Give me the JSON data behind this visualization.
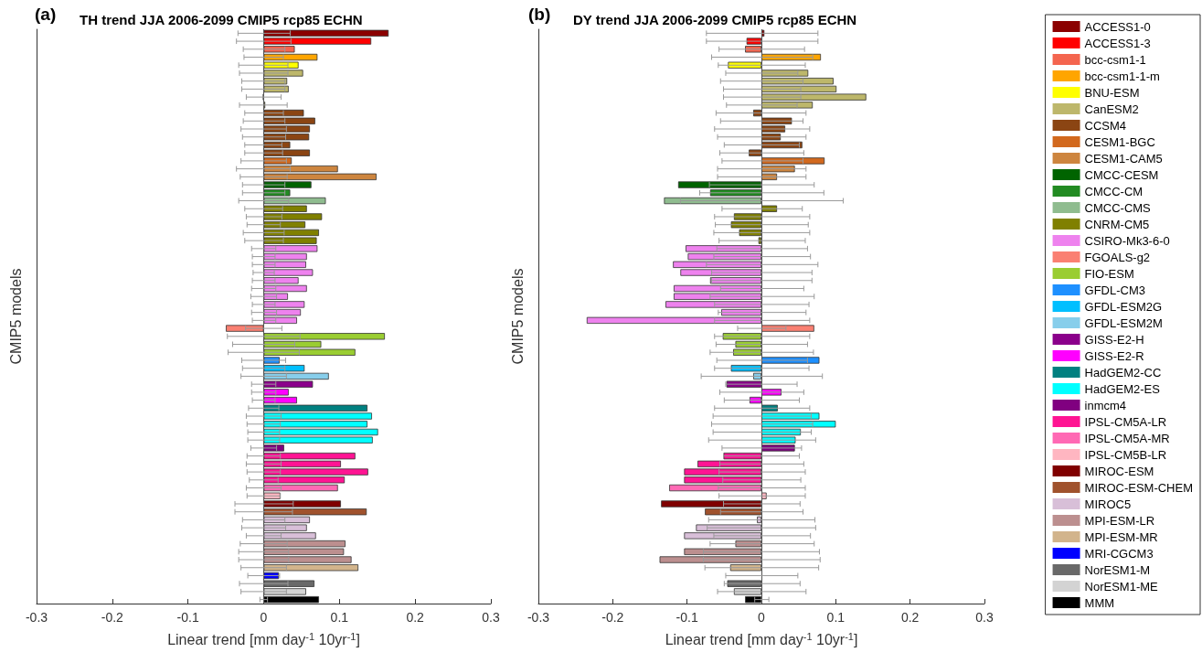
{
  "chart_data": [
    {
      "type": "bar",
      "orientation": "horizontal",
      "title": "TH trend JJA 2006-2099 CMIP5 rcp85 ECHN",
      "annotations": [
        "(a)"
      ],
      "xlabel": "Linear trend [mm day$^{-1}$ 10yr$^{-1}$]",
      "ylabel": "CMIP5 models",
      "tick_labels": "x",
      "categories": [
        null,
        null,
        null,
        null,
        null,
        null,
        null,
        null,
        null,
        null,
        null,
        null,
        null,
        null,
        null,
        null,
        null,
        null,
        null,
        null,
        null,
        null,
        null,
        null,
        null,
        null,
        null,
        null,
        null,
        null,
        null,
        null,
        null,
        null,
        null,
        null,
        null,
        null,
        null,
        null,
        null,
        null,
        null,
        null,
        null,
        null,
        null,
        null,
        null,
        null,
        null,
        null,
        null,
        null,
        null,
        null,
        null,
        null,
        null,
        null,
        null,
        null,
        null,
        null,
        null,
        null,
        null,
        null,
        null,
        null,
        null,
        null
      ],
      "xlim": [
        -0.3,
        0.3
      ],
      "xticks": [
        -0.3,
        -0.2,
        -0.1,
        0,
        0.1,
        0.2,
        0.3
      ],
      "grid": false,
      "ref_lines": [
        {
          "axis": "x",
          "value": 0
        }
      ],
      "values": [
        0.165,
        0.142,
        0.041,
        0.071,
        0.046,
        0.052,
        0.031,
        0.033,
        -0.001,
        0.002,
        0.053,
        0.068,
        0.061,
        0.06,
        0.035,
        0.061,
        0.037,
        0.098,
        0.149,
        0.063,
        0.035,
        0.082,
        0.057,
        0.077,
        0.055,
        0.073,
        0.07,
        0.071,
        0.057,
        0.056,
        0.065,
        0.046,
        0.057,
        0.032,
        0.054,
        0.049,
        0.044,
        -0.05,
        0.16,
        0.076,
        0.121,
        0.021,
        0.054,
        0.086,
        0.065,
        0.033,
        0.044,
        0.137,
        0.143,
        0.137,
        0.151,
        0.144,
        0.027,
        0.121,
        0.102,
        0.138,
        0.107,
        0.098,
        0.022,
        0.102,
        0.136,
        0.061,
        0.057,
        0.069,
        0.108,
        0.106,
        0.116,
        0.125,
        0.02,
        0.067,
        0.056,
        0.073
      ],
      "errors": [
        [
          -0.034,
          0.035
        ],
        [
          -0.036,
          0.036
        ],
        [
          -0.027,
          0.028
        ],
        [
          -0.026,
          0.026
        ],
        [
          -0.033,
          0.032
        ],
        [
          -0.032,
          0.032
        ],
        [
          -0.029,
          0.028
        ],
        [
          -0.029,
          0.028
        ],
        [
          -0.023,
          0.023
        ],
        [
          -0.032,
          0.031
        ],
        [
          -0.025,
          0.026
        ],
        [
          -0.027,
          0.028
        ],
        [
          -0.03,
          0.03
        ],
        [
          -0.028,
          0.029
        ],
        [
          -0.025,
          0.024
        ],
        [
          -0.025,
          0.025
        ],
        [
          -0.03,
          0.03
        ],
        [
          -0.036,
          0.035
        ],
        [
          -0.031,
          0.031
        ],
        [
          -0.028,
          0.028
        ],
        [
          -0.028,
          0.028
        ],
        [
          -0.033,
          0.033
        ],
        [
          -0.025,
          0.025
        ],
        [
          -0.023,
          0.024
        ],
        [
          -0.022,
          0.022
        ],
        [
          -0.027,
          0.027
        ],
        [
          -0.025,
          0.026
        ],
        [
          -0.016,
          0.016
        ],
        [
          -0.015,
          0.015
        ],
        [
          -0.015,
          0.015
        ],
        [
          -0.014,
          0.014
        ],
        [
          -0.015,
          0.015
        ],
        [
          -0.016,
          0.016
        ],
        [
          -0.017,
          0.017
        ],
        [
          -0.015,
          0.015
        ],
        [
          -0.016,
          0.017
        ],
        [
          -0.015,
          0.016
        ],
        [
          -0.024,
          0.024
        ],
        [
          -0.048,
          0.048
        ],
        [
          -0.041,
          0.041
        ],
        [
          -0.047,
          0.047
        ],
        [
          -0.029,
          0.029
        ],
        [
          -0.028,
          0.028
        ],
        [
          -0.03,
          0.03
        ],
        [
          -0.016,
          0.016
        ],
        [
          -0.016,
          0.016
        ],
        [
          -0.015,
          0.015
        ],
        [
          -0.02,
          0.02
        ],
        [
          -0.023,
          0.023
        ],
        [
          -0.022,
          0.022
        ],
        [
          -0.021,
          0.021
        ],
        [
          -0.021,
          0.021
        ],
        [
          -0.017,
          0.017
        ],
        [
          -0.022,
          0.022
        ],
        [
          -0.023,
          0.023
        ],
        [
          -0.022,
          0.022
        ],
        [
          -0.019,
          0.019
        ],
        [
          -0.023,
          0.023
        ],
        [
          -0.022,
          0.022
        ],
        [
          -0.038,
          0.039
        ],
        [
          -0.038,
          0.038
        ],
        [
          -0.028,
          0.028
        ],
        [
          -0.029,
          0.029
        ],
        [
          -0.023,
          0.023
        ],
        [
          -0.031,
          0.031
        ],
        [
          -0.033,
          0.033
        ],
        [
          -0.033,
          0.033
        ],
        [
          -0.03,
          0.03
        ],
        [
          -0.021,
          0.021
        ],
        [
          -0.032,
          0.032
        ],
        [
          -0.03,
          0.03
        ],
        [
          -0.005,
          0.005
        ]
      ],
      "colors": [
        "#8b0000",
        "#ff0000",
        "#f4654f",
        "#ffa500",
        "#ffff00",
        "#bdb76b",
        "#bdb76b",
        "#bdb76b",
        "#bdb76b",
        "#bdb76b",
        "#8b4513",
        "#8b4513",
        "#8b4513",
        "#8b4513",
        "#8b4513",
        "#8b4513",
        "#d2691e",
        "#cd853f",
        "#cd853f",
        "#006400",
        "#228b22",
        "#8fbc8f",
        "#808000",
        "#808000",
        "#808000",
        "#808000",
        "#808000",
        "#ee82ee",
        "#ee82ee",
        "#ee82ee",
        "#ee82ee",
        "#ee82ee",
        "#ee82ee",
        "#ee82ee",
        "#ee82ee",
        "#ee82ee",
        "#ee82ee",
        "#fa8072",
        "#9acd32",
        "#9acd32",
        "#9acd32",
        "#1e90ff",
        "#00bfff",
        "#87ceeb",
        "#8b008b",
        "#ff00ff",
        "#ff00ff",
        "#008080",
        "#00ffff",
        "#00ffff",
        "#00ffff",
        "#00ffff",
        "#800080",
        "#ff1493",
        "#ff1493",
        "#ff1493",
        "#ff1493",
        "#ff69b4",
        "#ffb6c1",
        "#800000",
        "#a0522d",
        "#d8bfd8",
        "#d8bfd8",
        "#d8bfd8",
        "#bc8f8f",
        "#bc8f8f",
        "#bc8f8f",
        "#d2b48c",
        "#0000ff",
        "#696969",
        "#d3d3d3",
        "#000000"
      ]
    },
    {
      "type": "bar",
      "orientation": "horizontal",
      "title": "DY trend JJA 2006-2099 CMIP5 rcp85 ECHN",
      "annotations": [
        "(b)"
      ],
      "xlabel": "Linear trend [mm day$^{-1}$ 10yr$^{-1}$]",
      "ylabel": "CMIP5 models",
      "tick_labels": "x",
      "categories": [
        null,
        null,
        null,
        null,
        null,
        null,
        null,
        null,
        null,
        null,
        null,
        null,
        null,
        null,
        null,
        null,
        null,
        null,
        null,
        null,
        null,
        null,
        null,
        null,
        null,
        null,
        null,
        null,
        null,
        null,
        null,
        null,
        null,
        null,
        null,
        null,
        null,
        null,
        null,
        null,
        null,
        null,
        null,
        null,
        null,
        null,
        null,
        null,
        null,
        null,
        null,
        null,
        null,
        null,
        null,
        null,
        null,
        null,
        null,
        null,
        null,
        null,
        null,
        null,
        null,
        null,
        null,
        null,
        null,
        null,
        null,
        null
      ],
      "xlim": [
        -0.3,
        0.3
      ],
      "xticks": [
        -0.3,
        -0.2,
        -0.1,
        0,
        0.1,
        0.2,
        0.3
      ],
      "grid": false,
      "ref_lines": [
        {
          "axis": "x",
          "value": 0
        }
      ],
      "values": [
        0.004,
        -0.02,
        -0.022,
        0.08,
        -0.045,
        0.063,
        0.097,
        0.101,
        0.141,
        0.069,
        -0.011,
        0.041,
        0.032,
        0.026,
        0.055,
        -0.017,
        0.085,
        0.045,
        0.021,
        -0.112,
        -0.069,
        -0.131,
        0.021,
        -0.037,
        -0.041,
        -0.03,
        -0.004,
        -0.102,
        -0.099,
        -0.119,
        -0.109,
        -0.069,
        -0.118,
        -0.118,
        -0.129,
        -0.054,
        -0.235,
        0.071,
        -0.052,
        -0.035,
        -0.038,
        0.078,
        -0.041,
        -0.011,
        -0.047,
        0.027,
        -0.016,
        0.022,
        0.078,
        0.1,
        0.053,
        0.046,
        0.045,
        -0.051,
        -0.086,
        -0.104,
        -0.104,
        -0.124,
        0.007,
        -0.135,
        -0.076,
        -0.006,
        -0.088,
        -0.104,
        -0.035,
        -0.104,
        -0.137,
        -0.042,
        0,
        -0.046,
        -0.037,
        -0.022
      ],
      "errors": [
        [
          -0.074,
          0.076
        ],
        [
          -0.074,
          0.076
        ],
        [
          -0.057,
          0.058
        ],
        [
          -0.067,
          0.069
        ],
        [
          -0.058,
          0.059
        ],
        [
          -0.048,
          0.049
        ],
        [
          -0.055,
          0.056
        ],
        [
          -0.051,
          0.053
        ],
        [
          -0.051,
          0.053
        ],
        [
          -0.047,
          0.048
        ],
        [
          -0.061,
          0.06
        ],
        [
          -0.055,
          0.056
        ],
        [
          -0.063,
          0.065
        ],
        [
          -0.059,
          0.06
        ],
        [
          -0.05,
          0.051
        ],
        [
          -0.056,
          0.057
        ],
        [
          -0.053,
          0.056
        ],
        [
          -0.059,
          0.06
        ],
        [
          -0.059,
          0.06
        ],
        [
          -0.07,
          0.071
        ],
        [
          -0.083,
          0.084
        ],
        [
          -0.109,
          0.11
        ],
        [
          -0.053,
          0.055
        ],
        [
          -0.063,
          0.065
        ],
        [
          -0.062,
          0.063
        ],
        [
          -0.064,
          0.065
        ],
        [
          -0.057,
          0.059
        ],
        [
          -0.06,
          0.062
        ],
        [
          -0.064,
          0.066
        ],
        [
          -0.074,
          0.076
        ],
        [
          -0.067,
          0.068
        ],
        [
          -0.067,
          0.068
        ],
        [
          -0.055,
          0.057
        ],
        [
          -0.069,
          0.071
        ],
        [
          -0.063,
          0.064
        ],
        [
          -0.058,
          0.06
        ],
        [
          -0.063,
          0.065
        ],
        [
          -0.032,
          0.033
        ],
        [
          -0.063,
          0.065
        ],
        [
          -0.061,
          0.062
        ],
        [
          -0.069,
          0.07
        ],
        [
          -0.06,
          0.062
        ],
        [
          -0.063,
          0.064
        ],
        [
          -0.081,
          0.082
        ],
        [
          -0.048,
          0.048
        ],
        [
          -0.056,
          0.057
        ],
        [
          -0.05,
          0.051
        ],
        [
          -0.063,
          0.065
        ],
        [
          -0.065,
          0.067
        ],
        [
          -0.067,
          0.069
        ],
        [
          -0.065,
          0.067
        ],
        [
          -0.071,
          0.073
        ],
        [
          -0.053,
          0.054
        ],
        [
          -0.051,
          0.051
        ],
        [
          -0.056,
          0.057
        ],
        [
          -0.057,
          0.059
        ],
        [
          -0.052,
          0.053
        ],
        [
          -0.058,
          0.059
        ],
        [
          -0.057,
          0.059
        ],
        [
          -0.051,
          0.052
        ],
        [
          -0.055,
          0.056
        ],
        [
          -0.071,
          0.072
        ],
        [
          -0.073,
          0.073
        ],
        [
          -0.064,
          0.066
        ],
        [
          -0.069,
          0.071
        ],
        [
          -0.078,
          0.078
        ],
        [
          -0.078,
          0.079
        ],
        [
          -0.076,
          0.077
        ],
        [
          -0.048,
          0.049
        ],
        [
          -0.05,
          0.052
        ],
        [
          -0.059,
          0.06
        ],
        [
          -0.009,
          0.01
        ]
      ],
      "colors": [
        "#8b0000",
        "#ff0000",
        "#f4654f",
        "#ffa500",
        "#ffff00",
        "#bdb76b",
        "#bdb76b",
        "#bdb76b",
        "#bdb76b",
        "#bdb76b",
        "#8b4513",
        "#8b4513",
        "#8b4513",
        "#8b4513",
        "#8b4513",
        "#8b4513",
        "#d2691e",
        "#cd853f",
        "#cd853f",
        "#006400",
        "#228b22",
        "#8fbc8f",
        "#808000",
        "#808000",
        "#808000",
        "#808000",
        "#808000",
        "#ee82ee",
        "#ee82ee",
        "#ee82ee",
        "#ee82ee",
        "#ee82ee",
        "#ee82ee",
        "#ee82ee",
        "#ee82ee",
        "#ee82ee",
        "#ee82ee",
        "#fa8072",
        "#9acd32",
        "#9acd32",
        "#9acd32",
        "#1e90ff",
        "#00bfff",
        "#87ceeb",
        "#8b008b",
        "#ff00ff",
        "#ff00ff",
        "#008080",
        "#00ffff",
        "#00ffff",
        "#00ffff",
        "#00ffff",
        "#800080",
        "#ff1493",
        "#ff1493",
        "#ff1493",
        "#ff1493",
        "#ff69b4",
        "#ffb6c1",
        "#800000",
        "#a0522d",
        "#d8bfd8",
        "#d8bfd8",
        "#d8bfd8",
        "#bc8f8f",
        "#bc8f8f",
        "#bc8f8f",
        "#d2b48c",
        "#0000ff",
        "#696969",
        "#d3d3d3",
        "#000000"
      ]
    },
    {
      "type": "other",
      "legend": "right",
      "series": [
        {
          "name": "ACCESS1-0",
          "color": "#8b0000"
        },
        {
          "name": "ACCESS1-3",
          "color": "#ff0000"
        },
        {
          "name": "bcc-csm1-1",
          "color": "#f4654f"
        },
        {
          "name": "bcc-csm1-1-m",
          "color": "#ffa500"
        },
        {
          "name": "BNU-ESM",
          "color": "#ffff00"
        },
        {
          "name": "CanESM2",
          "color": "#bdb76b"
        },
        {
          "name": "CCSM4",
          "color": "#8b4513"
        },
        {
          "name": "CESM1-BGC",
          "color": "#d2691e"
        },
        {
          "name": "CESM1-CAM5",
          "color": "#cd853f"
        },
        {
          "name": "CMCC-CESM",
          "color": "#006400"
        },
        {
          "name": "CMCC-CM",
          "color": "#228b22"
        },
        {
          "name": "CMCC-CMS",
          "color": "#8fbc8f"
        },
        {
          "name": "CNRM-CM5",
          "color": "#808000"
        },
        {
          "name": "CSIRO-Mk3-6-0",
          "color": "#ee82ee"
        },
        {
          "name": "FGOALS-g2",
          "color": "#fa8072"
        },
        {
          "name": "FIO-ESM",
          "color": "#9acd32"
        },
        {
          "name": "GFDL-CM3",
          "color": "#1e90ff"
        },
        {
          "name": "GFDL-ESM2G",
          "color": "#00bfff"
        },
        {
          "name": "GFDL-ESM2M",
          "color": "#87ceeb"
        },
        {
          "name": "GISS-E2-H",
          "color": "#8b008b"
        },
        {
          "name": "GISS-E2-R",
          "color": "#ff00ff"
        },
        {
          "name": "HadGEM2-CC",
          "color": "#008080"
        },
        {
          "name": "HadGEM2-ES",
          "color": "#00ffff"
        },
        {
          "name": "inmcm4",
          "color": "#800080"
        },
        {
          "name": "IPSL-CM5A-LR",
          "color": "#ff1493"
        },
        {
          "name": "IPSL-CM5A-MR",
          "color": "#ff69b4"
        },
        {
          "name": "IPSL-CM5B-LR",
          "color": "#ffb6c1"
        },
        {
          "name": "MIROC-ESM",
          "color": "#800000"
        },
        {
          "name": "MIROC-ESM-CHEM",
          "color": "#a0522d"
        },
        {
          "name": "MIROC5",
          "color": "#d8bfd8"
        },
        {
          "name": "MPI-ESM-LR",
          "color": "#bc8f8f"
        },
        {
          "name": "MPI-ESM-MR",
          "color": "#d2b48c"
        },
        {
          "name": "MRI-CGCM3",
          "color": "#0000ff"
        },
        {
          "name": "NorESM1-M",
          "color": "#696969"
        },
        {
          "name": "NorESM1-ME",
          "color": "#d3d3d3"
        },
        {
          "name": "MMM",
          "color": "#000000"
        }
      ]
    }
  ]
}
